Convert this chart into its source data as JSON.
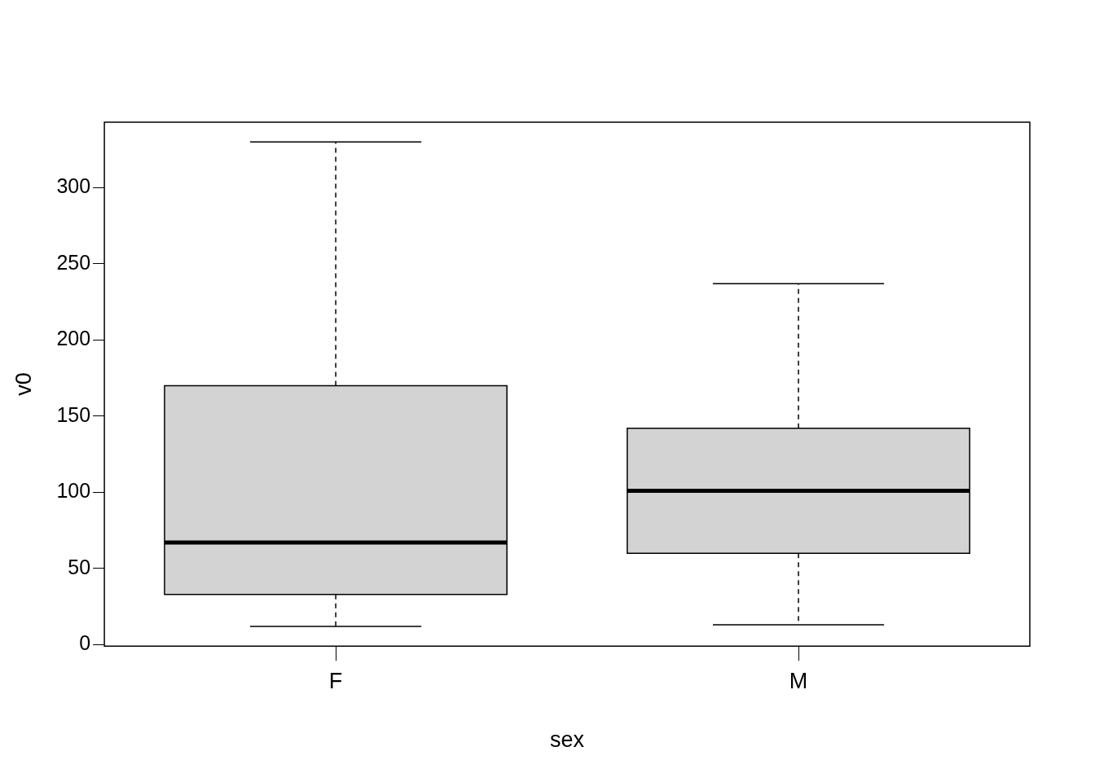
{
  "chart_data": {
    "type": "box",
    "xlabel": "sex",
    "ylabel": "v0",
    "categories": [
      "F",
      "M"
    ],
    "color": "#d3d3d3",
    "boxes": [
      {
        "low": 12,
        "q1": 33,
        "median": 67,
        "q3": 170,
        "high": 330
      },
      {
        "low": 13,
        "q1": 60,
        "median": 101,
        "q3": 142,
        "high": 237
      }
    ],
    "ylim": [
      -1,
      343
    ],
    "yticks": [
      0,
      50,
      100,
      150,
      200,
      250,
      300
    ]
  }
}
